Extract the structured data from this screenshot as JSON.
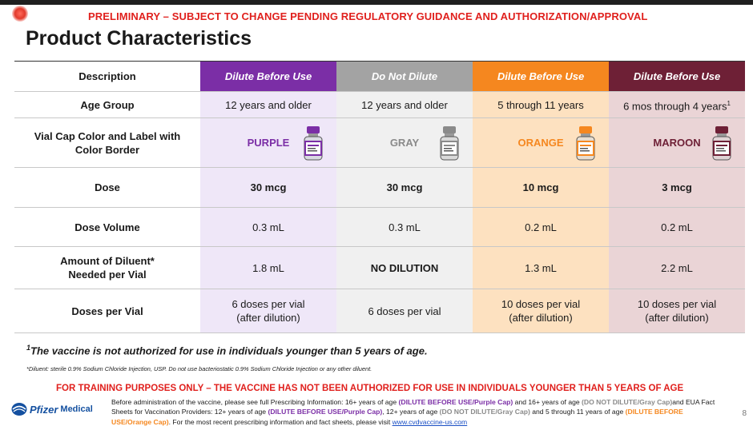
{
  "header": {
    "preliminary": "PRELIMINARY – SUBJECT TO CHANGE PENDING REGULATORY GUIDANCE AND AUTHORIZATION/APPROVAL",
    "title": "Product Characteristics"
  },
  "table": {
    "columns": [
      "Description",
      "Dilute Before Use",
      "Do Not Dilute",
      "Dilute Before Use",
      "Dilute Before Use"
    ],
    "header_colors": [
      "#ffffff",
      "#7b2ea6",
      "#a3a3a3",
      "#f5871f",
      "#6e2036"
    ],
    "rows": {
      "age_group": {
        "label": "Age Group",
        "values": [
          "12 years and older",
          "12 years and older",
          "5 through 11 years",
          "6 mos through 4 years"
        ],
        "sup": "1"
      },
      "vial_cap": {
        "label_line1": "Vial Cap Color and Label with",
        "label_line2": "Color Border",
        "values": [
          "PURPLE",
          "GRAY",
          "ORANGE",
          "MAROON"
        ],
        "colors": [
          "#7b2ea6",
          "#8a8a8a",
          "#f5871f",
          "#6e2036"
        ]
      },
      "dose": {
        "label": "Dose",
        "values": [
          "30 mcg",
          "30 mcg",
          "10 mcg",
          "3 mcg"
        ]
      },
      "dose_volume": {
        "label": "Dose Volume",
        "values": [
          "0.3 mL",
          "0.3 mL",
          "0.2 mL",
          "0.2 mL"
        ]
      },
      "diluent": {
        "label_line1": "Amount of Diluent*",
        "label_line2": "Needed per Vial",
        "values": [
          "1.8 mL",
          "NO DILUTION",
          "1.3 mL",
          "2.2 mL"
        ]
      },
      "doses_per_vial": {
        "label": "Doses per Vial",
        "values_line1": [
          "6 doses per vial",
          "6 doses per vial",
          "10 doses per vial",
          "10 doses per vial"
        ],
        "values_line2": [
          "(after dilution)",
          "",
          "(after dilution)",
          "(after dilution)"
        ]
      }
    }
  },
  "footnotes": {
    "sup": "1",
    "note1": "The vaccine is not authorized for use in individuals younger than 5 years of age.",
    "note2": "*Diluent: sterile 0.9% Sodium Chloride Injection, USP. Do not use bacteriostatic 0.9% Sodium Chloride Injection or any other diluent."
  },
  "training": "FOR TRAINING PURPOSES ONLY – THE VACCINE HAS NOT BEEN AUTHORIZED FOR USE IN INDIVIDUALS YOUNGER THAN 5 YEARS OF AGE",
  "disclaimer": {
    "p1": "Before administration of the vaccine, please see full Prescribing Information: 16+ years of age ",
    "tag1": "(DILUTE BEFORE USE/Purple Cap)",
    "p2": " and 16+ years of age ",
    "tag2": "(DO NOT DILUTE/Gray Cap)",
    "p3": "and EUA Fact Sheets for Vaccination Providers: 12+ years of age ",
    "tag3": "(DILUTE BEFORE USE/Purple Cap)",
    "p4": ", 12+ years of age ",
    "tag4": "(DO NOT DILUTE/Gray Cap)",
    "p5": " and 5 through 11 years of age ",
    "tag5": "(DILUTE BEFORE USE/Orange Cap)",
    "p6": ". For the most recent prescribing information and fact sheets, please visit ",
    "link": "www.cvdvaccine-us.com"
  },
  "logo": {
    "brand": "Pfizer",
    "sub": "Medical"
  },
  "page_number": "8"
}
